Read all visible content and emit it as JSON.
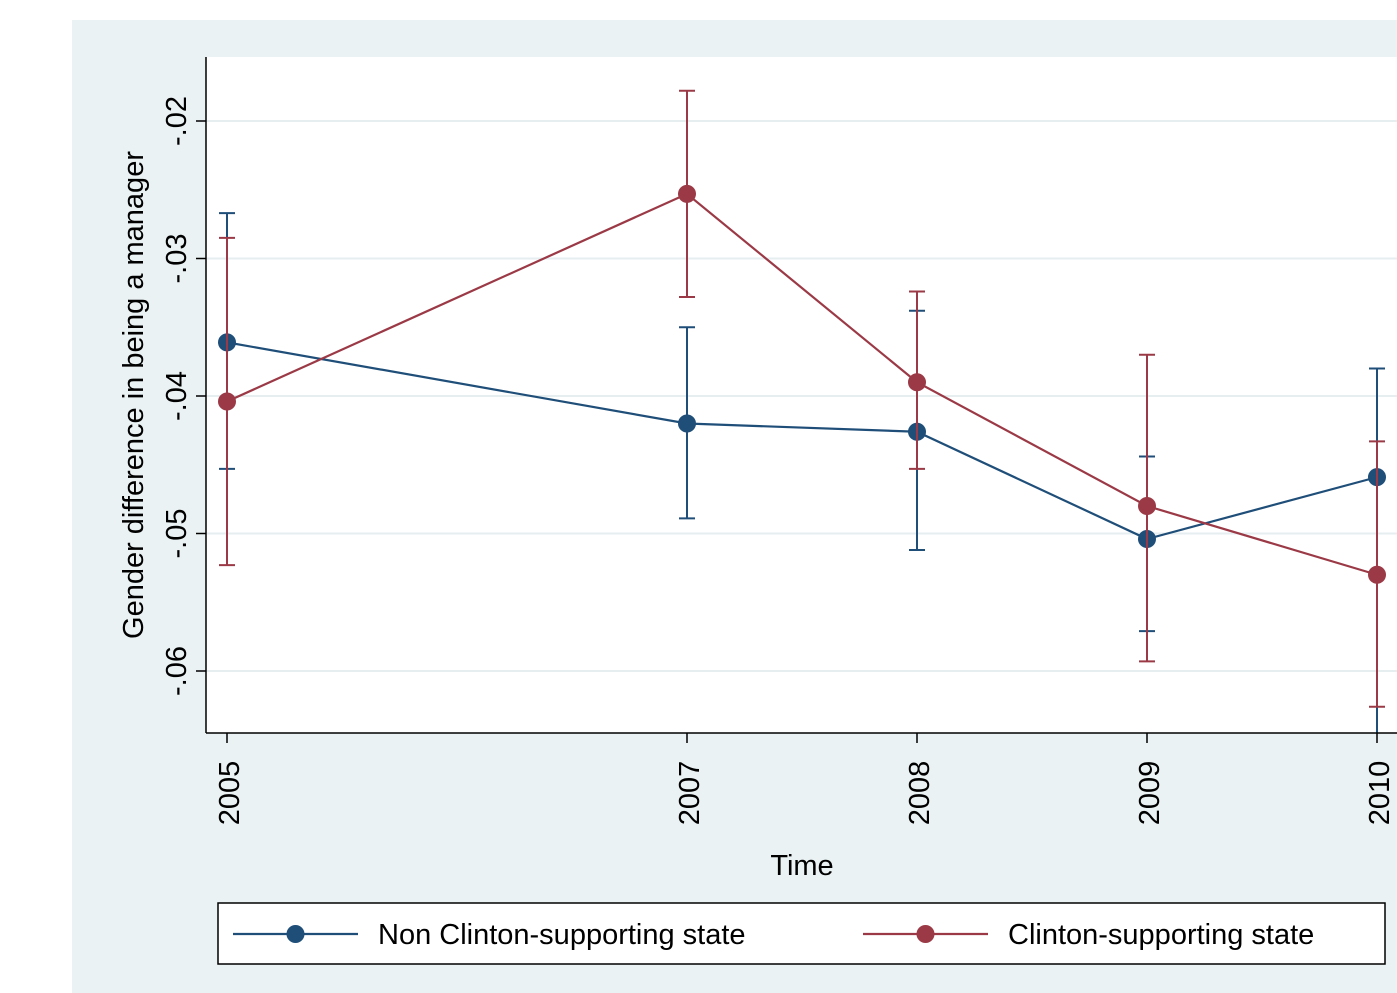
{
  "chart_data": {
    "type": "line",
    "title": "",
    "xlabel": "Time",
    "ylabel": "Gender difference in being a manager",
    "x": [
      2005,
      2007,
      2008,
      2009,
      2010
    ],
    "x_ticks": [
      "2005",
      "2007",
      "2008",
      "2009",
      "2010"
    ],
    "y_ticks": [
      "-.06",
      "-.05",
      "-.04",
      "-.03",
      "-.02"
    ],
    "y_tick_values": [
      -0.06,
      -0.05,
      -0.04,
      -0.03,
      -0.02
    ],
    "ylim": [
      -0.0645,
      -0.0155
    ],
    "grid": true,
    "legend_position": "bottom",
    "series": [
      {
        "name": "Non Clinton-supporting state",
        "color": "#1f4e79",
        "values": [
          -0.0361,
          -0.042,
          -0.0426,
          -0.0504,
          -0.0459
        ],
        "ci_lower": [
          -0.0453,
          -0.0489,
          -0.0512,
          -0.0571,
          null
        ],
        "ci_upper": [
          -0.0267,
          -0.035,
          -0.0338,
          -0.0444,
          -0.038
        ]
      },
      {
        "name": "Clinton-supporting state",
        "color": "#9b3a46",
        "values": [
          -0.0404,
          -0.0253,
          -0.039,
          -0.048,
          -0.053
        ],
        "ci_lower": [
          -0.0523,
          -0.0328,
          -0.0453,
          -0.0593,
          -0.0626
        ],
        "ci_upper": [
          -0.0285,
          -0.0178,
          -0.0324,
          -0.037,
          -0.0433
        ]
      }
    ]
  }
}
